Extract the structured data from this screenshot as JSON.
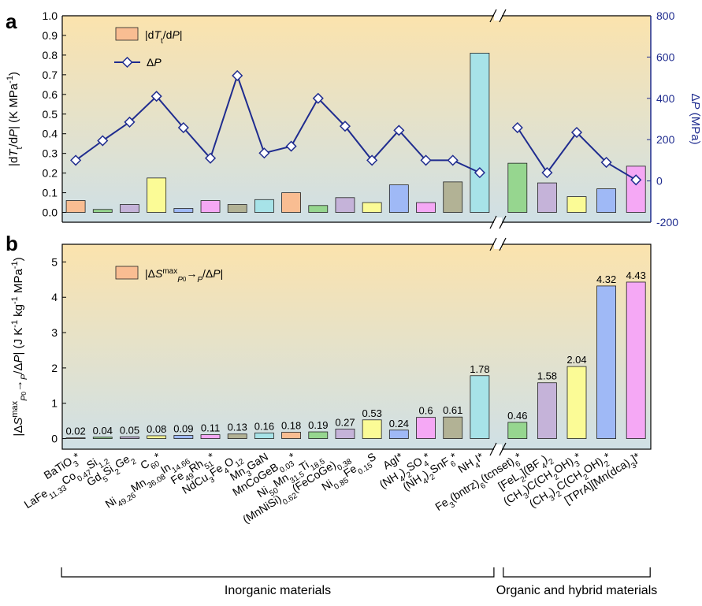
{
  "panel_labels": [
    "a",
    "b"
  ],
  "categories": [
    "BaTiO3*",
    "LaFe11.33Co0.47Si1.2",
    "Gd5Si2Ge2",
    "C60*",
    "Ni49.26Mn36.08In14.66",
    "Fe49Rh51*",
    "NdCu3Fe4O12",
    "Mn3GaN",
    "MnCoGeB0.03*",
    "Ni50Mn31.5Ti18.5",
    "(MnNiSi)0.62(FeCoGe)0.38",
    "Ni0.85Fe0.15S",
    "AgI*",
    "(NH4)2SO4*",
    "(NH4)2SnF6*",
    "NH4I*",
    "Fe3(bntrz)6(tcnset)6*",
    "[FeL2](BF4)2",
    "(CH3)C(CH2OH)3*",
    "(CH3)2C(CH2OH)2*",
    "[TPrA][Mn(dca)3]*"
  ],
  "category_labels": [
    {
      "parts": [
        [
          "BaTiO",
          ""
        ],
        [
          "3",
          "sub"
        ],
        [
          "*",
          ""
        ]
      ]
    },
    {
      "parts": [
        [
          "LaFe",
          ""
        ],
        [
          "11.33",
          "sub"
        ],
        [
          "Co",
          ""
        ],
        [
          "0.47",
          "sub"
        ],
        [
          "Si",
          ""
        ],
        [
          "1.2",
          "sub"
        ]
      ]
    },
    {
      "parts": [
        [
          "Gd",
          ""
        ],
        [
          "5",
          "sub"
        ],
        [
          "Si",
          ""
        ],
        [
          "2",
          "sub"
        ],
        [
          "Ge",
          ""
        ],
        [
          "2",
          "sub"
        ]
      ]
    },
    {
      "parts": [
        [
          "C",
          ""
        ],
        [
          "60",
          "sub"
        ],
        [
          "*",
          ""
        ]
      ]
    },
    {
      "parts": [
        [
          "Ni",
          ""
        ],
        [
          "49.26",
          "sub"
        ],
        [
          "Mn",
          ""
        ],
        [
          "36.08",
          "sub"
        ],
        [
          "In",
          ""
        ],
        [
          "14.66",
          "sub"
        ]
      ]
    },
    {
      "parts": [
        [
          "Fe",
          ""
        ],
        [
          "49",
          "sub"
        ],
        [
          "Rh",
          ""
        ],
        [
          "51",
          "sub"
        ],
        [
          "*",
          ""
        ]
      ]
    },
    {
      "parts": [
        [
          "NdCu",
          ""
        ],
        [
          "3",
          "sub"
        ],
        [
          "Fe",
          ""
        ],
        [
          "4",
          "sub"
        ],
        [
          "O",
          ""
        ],
        [
          "12",
          "sub"
        ]
      ]
    },
    {
      "parts": [
        [
          "Mn",
          ""
        ],
        [
          "3",
          "sub"
        ],
        [
          "GaN",
          ""
        ]
      ]
    },
    {
      "parts": [
        [
          "MnCoGeB",
          ""
        ],
        [
          "0.03",
          "sub"
        ],
        [
          "*",
          ""
        ]
      ]
    },
    {
      "parts": [
        [
          "Ni",
          ""
        ],
        [
          "50",
          "sub"
        ],
        [
          "Mn",
          ""
        ],
        [
          "31.5",
          "sub"
        ],
        [
          "Ti",
          ""
        ],
        [
          "18.5",
          "sub"
        ]
      ]
    },
    {
      "parts": [
        [
          "(MnNiSi)",
          ""
        ],
        [
          "0.62",
          "sub"
        ],
        [
          "(FeCoGe)",
          ""
        ],
        [
          "0.38",
          "sub"
        ]
      ]
    },
    {
      "parts": [
        [
          "Ni",
          ""
        ],
        [
          "0.85",
          "sub"
        ],
        [
          "Fe",
          ""
        ],
        [
          "0.15",
          "sub"
        ],
        [
          "S",
          ""
        ]
      ]
    },
    {
      "parts": [
        [
          "AgI*",
          ""
        ]
      ]
    },
    {
      "parts": [
        [
          "(NH",
          ""
        ],
        [
          "4",
          "sub"
        ],
        [
          ")",
          ""
        ],
        [
          "2",
          "sub"
        ],
        [
          "SO",
          ""
        ],
        [
          "4",
          "sub"
        ],
        [
          "*",
          ""
        ]
      ]
    },
    {
      "parts": [
        [
          "(NH",
          ""
        ],
        [
          "4",
          "sub"
        ],
        [
          ")",
          ""
        ],
        [
          "2",
          "sub"
        ],
        [
          "SnF",
          ""
        ],
        [
          "6",
          "sub"
        ],
        [
          "*",
          ""
        ]
      ]
    },
    {
      "parts": [
        [
          "NH",
          ""
        ],
        [
          "4",
          "sub"
        ],
        [
          "I*",
          ""
        ]
      ]
    },
    {
      "parts": [
        [
          "Fe",
          ""
        ],
        [
          "3",
          "sub"
        ],
        [
          "(bntrz)",
          ""
        ],
        [
          "6",
          "sub"
        ],
        [
          "(tcnset)",
          ""
        ],
        [
          "6",
          "sub"
        ],
        [
          "*",
          ""
        ]
      ]
    },
    {
      "parts": [
        [
          "[FeL",
          ""
        ],
        [
          "2",
          "sub"
        ],
        [
          "](BF",
          ""
        ],
        [
          "4",
          "sub"
        ],
        [
          ")",
          ""
        ],
        [
          "2",
          "sub"
        ]
      ]
    },
    {
      "parts": [
        [
          "(CH",
          ""
        ],
        [
          "3",
          "sub"
        ],
        [
          ")C(CH",
          ""
        ],
        [
          "2",
          "sub"
        ],
        [
          "OH)",
          ""
        ],
        [
          "3",
          "sub"
        ],
        [
          "*",
          ""
        ]
      ]
    },
    {
      "parts": [
        [
          "(CH",
          ""
        ],
        [
          "3",
          "sub"
        ],
        [
          ")",
          ""
        ],
        [
          "2",
          "sub"
        ],
        [
          "C(CH",
          ""
        ],
        [
          "2",
          "sub"
        ],
        [
          "OH)",
          ""
        ],
        [
          "2",
          "sub"
        ],
        [
          "*",
          ""
        ]
      ]
    },
    {
      "parts": [
        [
          "[TPrA][Mn(dca)",
          ""
        ],
        [
          "3",
          "sub"
        ],
        [
          "]*",
          ""
        ]
      ]
    }
  ],
  "bar_colors": [
    "#f9bd92",
    "#96d68f",
    "#c5b3d9",
    "#fbfb96",
    "#9fb9f6",
    "#f5a8f5",
    "#b2b295",
    "#a7e3e8",
    "#f9bd92",
    "#96d68f",
    "#c5b3d9",
    "#fbfb96",
    "#9fb9f6",
    "#f5a8f5",
    "#b2b295",
    "#a7e3e8",
    "#96d68f",
    "#c5b3d9",
    "#fbfb96",
    "#9fb9f6",
    "#f5a8f5"
  ],
  "groups": [
    {
      "label": "Inorganic materials",
      "first": 0,
      "last": 15
    },
    {
      "label": "Organic and hybrid materials",
      "first": 16,
      "last": 20
    }
  ],
  "colors": {
    "line_series": "#1f2c8f",
    "bg_top": "#fbe3ad",
    "bg_bottom": "#cfe0e6",
    "frame": "#000000"
  },
  "chart_data": [
    {
      "panel": "a",
      "type": "bar",
      "categories_ref": "categories",
      "ylabel": "|dTt/dP| (K MPa-1)",
      "ylabel_parts": [
        [
          "|d",
          ""
        ],
        [
          "T",
          "i"
        ],
        [
          "t",
          "sub"
        ],
        [
          "/d",
          ""
        ],
        [
          "P",
          "i"
        ],
        [
          "| (K MPa",
          ""
        ],
        [
          "-1",
          "sup"
        ],
        [
          ")",
          ""
        ]
      ],
      "ylim": [
        -0.05,
        1.0
      ],
      "yticks": [
        "0.0",
        "0.1",
        "0.2",
        "0.3",
        "0.4",
        "0.5",
        "0.6",
        "0.7",
        "0.8",
        "0.9",
        "1.0"
      ],
      "y2label": "ΔP (MPa)",
      "y2label_parts": [
        [
          "Δ",
          ""
        ],
        [
          "P",
          "i"
        ],
        [
          " (MPa)",
          ""
        ]
      ],
      "y2lim": [
        -200,
        800
      ],
      "y2ticks": [
        "-200",
        "0",
        "200",
        "400",
        "600",
        "800"
      ],
      "legend_position": "top-left",
      "axis_break": "between NH4I* and Fe3(bntrz)6(tcnset)6*",
      "series": [
        {
          "name": "|dTt/dP|",
          "name_parts": [
            [
              "|d",
              ""
            ],
            [
              "T",
              "i"
            ],
            [
              "t",
              "sub"
            ],
            [
              "/d",
              ""
            ],
            [
              "P",
              "i"
            ],
            [
              "|",
              ""
            ]
          ],
          "type": "bar",
          "axis": "left",
          "values": [
            0.06,
            0.015,
            0.04,
            0.175,
            0.02,
            0.06,
            0.04,
            0.065,
            0.1,
            0.035,
            0.075,
            0.05,
            0.14,
            0.05,
            0.155,
            0.81,
            0.25,
            0.15,
            0.08,
            0.12,
            0.235
          ]
        },
        {
          "name": "ΔP",
          "name_parts": [
            [
              "Δ",
              ""
            ],
            [
              "P",
              "i"
            ]
          ],
          "type": "line",
          "marker": "diamond",
          "axis": "right",
          "values": [
            100,
            195,
            285,
            410,
            258,
            110,
            510,
            135,
            168,
            400,
            265,
            100,
            245,
            100,
            100,
            40,
            258,
            40,
            235,
            90,
            5
          ]
        }
      ]
    },
    {
      "panel": "b",
      "type": "bar",
      "categories_ref": "categories",
      "ylabel": "|ΔS^max_{Pc→P}/ΔP| (J K-1 kg-1 MPa-1)",
      "ylabel_parts": [
        [
          "|Δ",
          ""
        ],
        [
          "S",
          "i"
        ],
        [
          "max",
          "sup"
        ],
        [
          "P",
          "isub"
        ],
        [
          "0",
          "sub2"
        ],
        [
          "→",
          ""
        ],
        [
          "P",
          "isub"
        ],
        [
          "/Δ",
          ""
        ],
        [
          "P",
          "i"
        ],
        [
          "| (J K",
          ""
        ],
        [
          "-1",
          "sup"
        ],
        [
          " kg",
          ""
        ],
        [
          "-1",
          "sup"
        ],
        [
          " MPa",
          ""
        ],
        [
          "-1",
          "sup"
        ],
        [
          ")",
          ""
        ]
      ],
      "ylim": [
        -0.3,
        5.5
      ],
      "yticks": [
        "0",
        "1",
        "2",
        "3",
        "4",
        "5"
      ],
      "legend_position": "top-left",
      "axis_break": "between NH4I* and Fe3(bntrz)6(tcnset)6*",
      "series": [
        {
          "name": "|ΔS^max_{Pc→P}/ΔP|",
          "name_parts": [
            [
              "|Δ",
              ""
            ],
            [
              "S",
              "i"
            ],
            [
              "max",
              "sup"
            ],
            [
              "P",
              "isub"
            ],
            [
              "0",
              "sub2"
            ],
            [
              "→",
              ""
            ],
            [
              "P",
              "isub"
            ],
            [
              "/Δ",
              ""
            ],
            [
              "P",
              "i"
            ],
            [
              "|",
              ""
            ]
          ],
          "type": "bar",
          "values": [
            0.02,
            0.04,
            0.05,
            0.08,
            0.09,
            0.11,
            0.13,
            0.16,
            0.18,
            0.19,
            0.27,
            0.53,
            0.24,
            0.6,
            0.61,
            1.78,
            0.46,
            1.58,
            2.04,
            4.32,
            4.43
          ],
          "value_labels": [
            "0.02",
            "0.04",
            "0.05",
            "0.08",
            "0.09",
            "0.11",
            "0.13",
            "0.16",
            "0.18",
            "0.19",
            "0.27",
            "0.53",
            "0.24",
            "0.6",
            "0.61",
            "1.78",
            "0.46",
            "1.58",
            "2.04",
            "4.32",
            "4.43"
          ]
        }
      ]
    }
  ]
}
